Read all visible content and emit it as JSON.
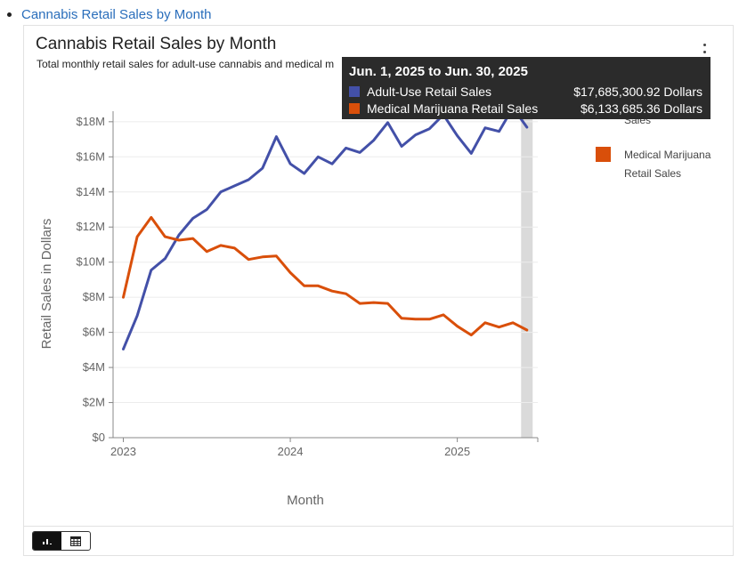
{
  "page": {
    "link_text": "Cannabis Retail Sales by Month"
  },
  "card": {
    "title": "Cannabis Retail Sales by Month",
    "subtitle": "Total monthly retail sales for adult-use cannabis and medical m",
    "menu_icon": "kebab-menu-icon",
    "view_toggle": {
      "chart_icon": "bar-chart-icon",
      "table_icon": "table-icon",
      "active": "chart"
    }
  },
  "tooltip": {
    "title": "Jun. 1, 2025 to Jun. 30, 2025",
    "rows": [
      {
        "name": "Adult-Use Retail Sales",
        "value": "$17,685,300.92 Dollars",
        "color": "#4350a8"
      },
      {
        "name": "Medical Marijuana Retail Sales",
        "value": "$6,133,685.36 Dollars",
        "color": "#d94f0a"
      }
    ]
  },
  "legend": {
    "items": [
      {
        "label": "Sales",
        "color": "#4350a8",
        "swatch_hidden": true
      },
      {
        "label": "Medical Marijuana Retail Sales",
        "color": "#d94f0a"
      }
    ]
  },
  "chart_data": {
    "type": "line",
    "title": "Cannabis Retail Sales by Month",
    "xlabel": "Month",
    "ylabel": "Retail Sales in Dollars",
    "x": [
      "2023-01",
      "2023-02",
      "2023-03",
      "2023-04",
      "2023-05",
      "2023-06",
      "2023-07",
      "2023-08",
      "2023-09",
      "2023-10",
      "2023-11",
      "2023-12",
      "2024-01",
      "2024-02",
      "2024-03",
      "2024-04",
      "2024-05",
      "2024-06",
      "2024-07",
      "2024-08",
      "2024-09",
      "2024-10",
      "2024-11",
      "2024-12",
      "2025-01",
      "2025-02",
      "2025-03",
      "2025-04",
      "2025-05",
      "2025-06"
    ],
    "x_ticks": [
      {
        "label": "2023",
        "x": "2023-01"
      },
      {
        "label": "2024",
        "x": "2024-01"
      },
      {
        "label": "2025",
        "x": "2025-01"
      }
    ],
    "y_ticks": [
      "$0",
      "$2M",
      "$4M",
      "$6M",
      "$8M",
      "$10M",
      "$12M",
      "$14M",
      "$16M",
      "$18M"
    ],
    "ylim": [
      0,
      18600000
    ],
    "highlight": "2025-06",
    "grid": true,
    "legend_position": "right",
    "series": [
      {
        "name": "Adult-Use Retail Sales",
        "color": "#4350a8",
        "values": [
          5050000,
          6950000,
          9550000,
          10200000,
          11550000,
          12500000,
          13000000,
          14000000,
          14350000,
          14700000,
          15350000,
          17150000,
          15600000,
          15050000,
          16000000,
          15600000,
          16500000,
          16250000,
          16950000,
          17950000,
          16600000,
          17250000,
          17600000,
          18400000,
          17200000,
          16200000,
          17650000,
          17450000,
          18800000,
          17685301
        ]
      },
      {
        "name": "Medical Marijuana Retail Sales",
        "color": "#d94f0a",
        "values": [
          8000000,
          11450000,
          12550000,
          11450000,
          11250000,
          11350000,
          10600000,
          10950000,
          10800000,
          10150000,
          10300000,
          10350000,
          9400000,
          8650000,
          8650000,
          8350000,
          8200000,
          7650000,
          7700000,
          7650000,
          6800000,
          6750000,
          6750000,
          7000000,
          6350000,
          5850000,
          6550000,
          6300000,
          6550000,
          6133685
        ]
      }
    ]
  }
}
